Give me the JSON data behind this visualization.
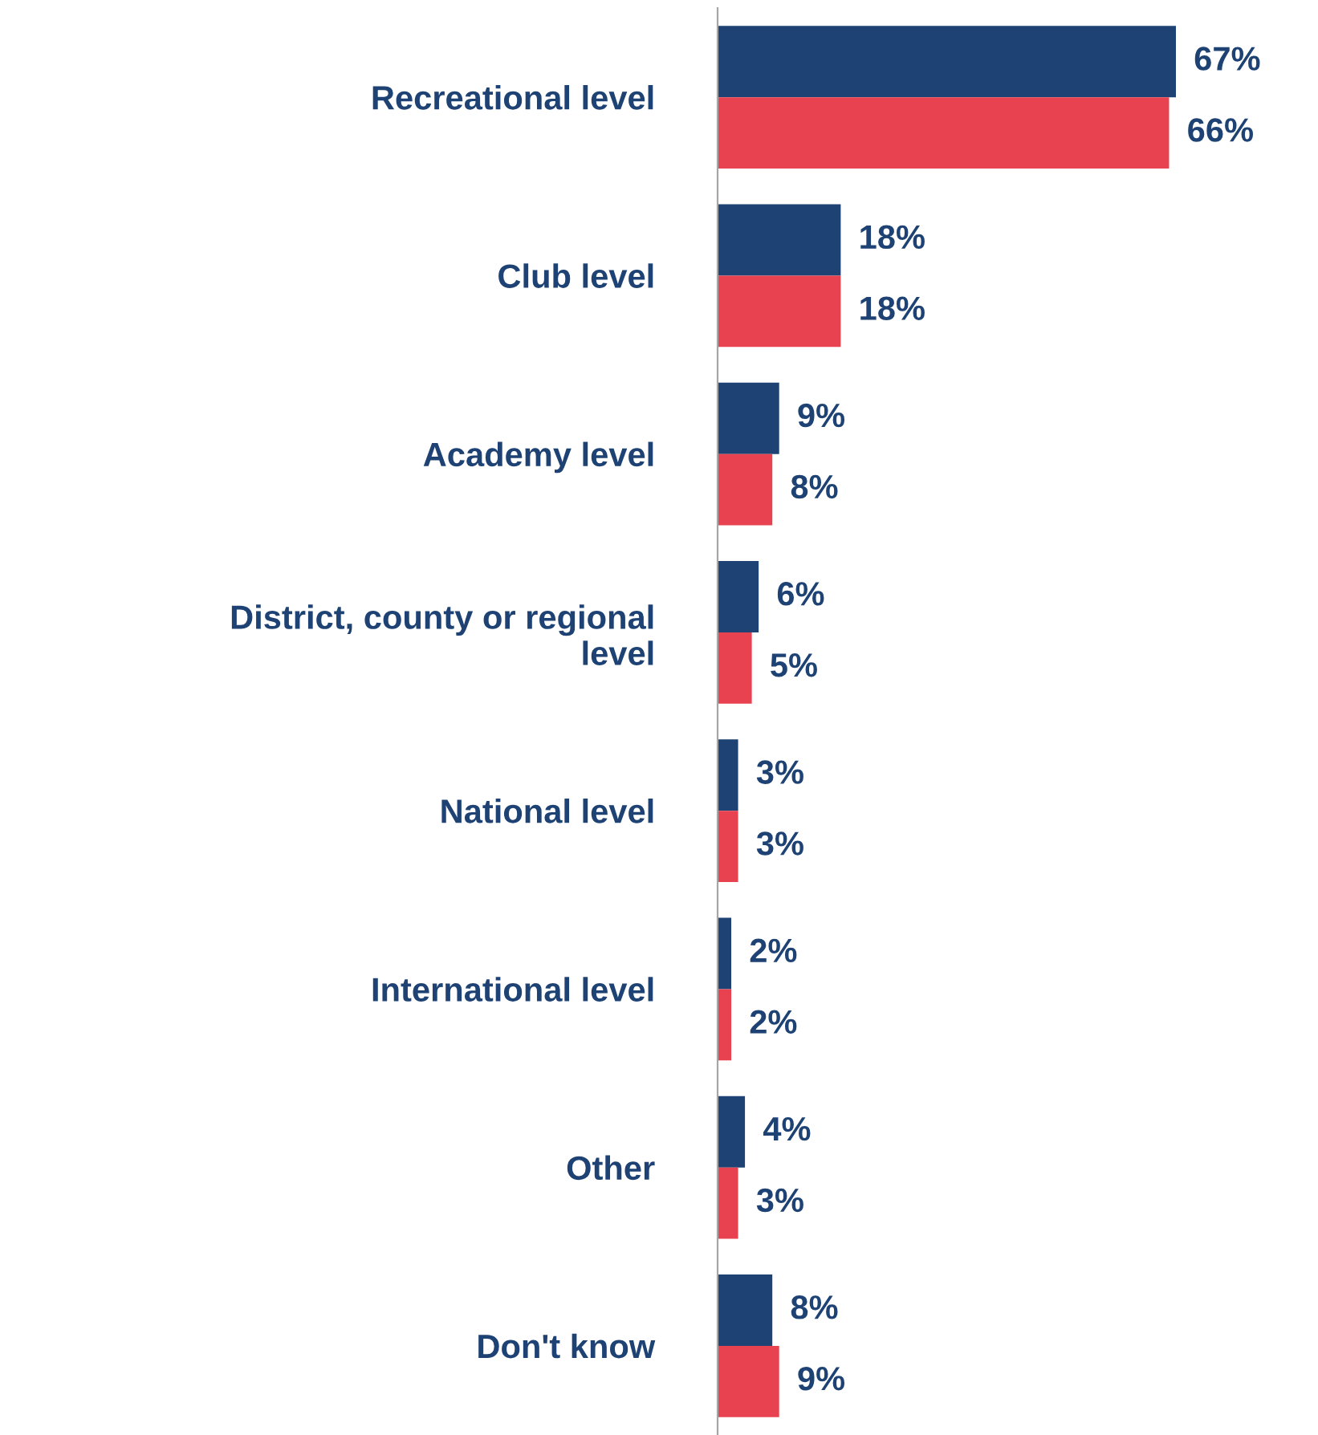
{
  "chart_data": {
    "type": "bar",
    "orientation": "horizontal",
    "categories": [
      "Recreational level",
      "Club level",
      "Academy level",
      "District, county or regional level",
      "National level",
      "International level",
      "Other",
      "Don't know"
    ],
    "series": [
      {
        "color": "#1d4273",
        "values": [
          67,
          18,
          9,
          6,
          3,
          2,
          4,
          8
        ],
        "value_labels": [
          "67%",
          "18%",
          "9%",
          "6%",
          "3%",
          "2%",
          "4%",
          "8%"
        ]
      },
      {
        "color": "#e84250",
        "values": [
          66,
          18,
          8,
          5,
          3,
          2,
          3,
          9
        ],
        "value_labels": [
          "66%",
          "18%",
          "8%",
          "5%",
          "3%",
          "2%",
          "3%",
          "9%"
        ]
      }
    ],
    "tick_labels": "y",
    "grid": false,
    "legend": false
  }
}
